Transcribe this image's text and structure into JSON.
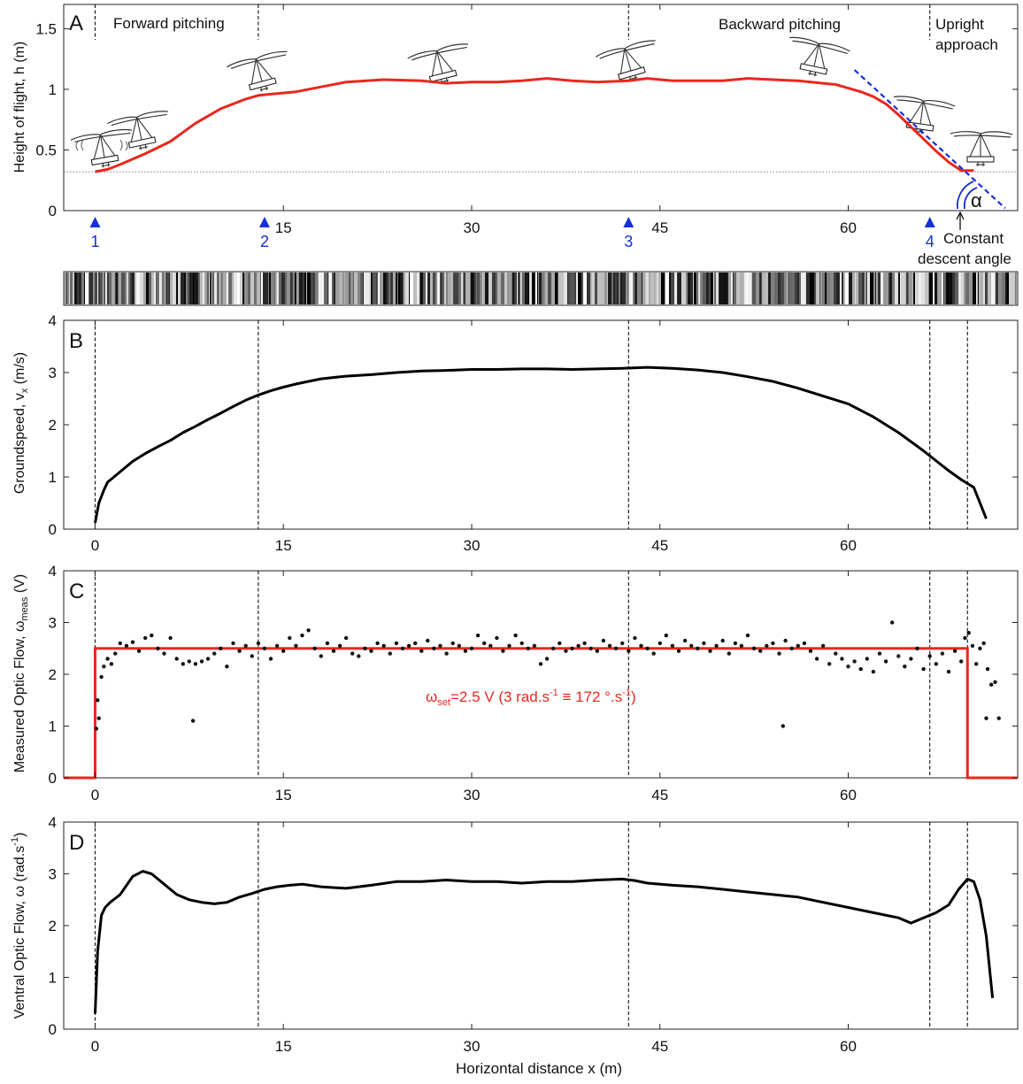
{
  "figure": {
    "panel_A": {
      "panel_label": "A",
      "ylabel": "Height of flight, h (m)",
      "yticks": [
        "0",
        "0.5",
        "1",
        "1.5"
      ],
      "xticks": [
        "15",
        "30",
        "45",
        "60"
      ],
      "phase_labels": [
        "Forward pitching",
        "Backward pitching",
        "Upright",
        "approach"
      ],
      "markers": [
        "1",
        "2",
        "3",
        "4"
      ],
      "alpha_label": "α",
      "annotation": [
        "Constant",
        "descent angle"
      ]
    },
    "panel_B": {
      "panel_label": "B",
      "ylabel_main": "Groundspeed, v",
      "ylabel_sub": "x",
      "ylabel_tail": " (m/s)",
      "yticks": [
        "0",
        "1",
        "2",
        "3",
        "4"
      ],
      "xticks": [
        "0",
        "15",
        "30",
        "45",
        "60"
      ]
    },
    "panel_C": {
      "panel_label": "C",
      "ylabel_main": "Measured Optic Flow, ω",
      "ylabel_sub": "meas",
      "ylabel_tail": " (V)",
      "yticks": [
        "0",
        "1",
        "2",
        "3",
        "4"
      ],
      "xticks": [
        "0",
        "15",
        "30",
        "45",
        "60"
      ],
      "setpoint_omega": "ω",
      "setpoint_sub": "set",
      "setpoint_t1": "=2.5 V  (3 rad.s",
      "setpoint_sup1": "-1",
      "setpoint_t2": " ≡ 172 °.s",
      "setpoint_sup2": "-1",
      "setpoint_t3": ")"
    },
    "panel_D": {
      "panel_label": "D",
      "ylabel_main": "Ventral Optic Flow, ω (rad.s",
      "ylabel_sup": "-1",
      "ylabel_tail": ")",
      "yticks": [
        "0",
        "1",
        "2",
        "3",
        "4"
      ],
      "xticks": [
        "0",
        "15",
        "30",
        "45",
        "60"
      ],
      "xlabel": "Horizontal distance x (m)"
    }
  },
  "chart_data": [
    {
      "panel": "A",
      "type": "line",
      "xlim": [
        -2.5,
        73.5
      ],
      "ylim": [
        0,
        1.7
      ],
      "phase_boundaries_x": [
        0,
        13,
        42.5,
        66.5
      ],
      "marker_positions_x": [
        0,
        13.5,
        42.5,
        66.5
      ],
      "ground_reference_y": 0.32,
      "series": [
        {
          "color": "#e8281e",
          "x": [
            0.0,
            1.0,
            2.0,
            4.0,
            6.0,
            8.0,
            10.0,
            12.0,
            13.0,
            14.0,
            16.0,
            18.0,
            20.0,
            23.0,
            26.0,
            28.0,
            30.0,
            32.0,
            34.0,
            36.0,
            38.0,
            40.0,
            42.5,
            44.0,
            46.0,
            48.0,
            50.0,
            52.0,
            54.0,
            56.0,
            58.0,
            59.0,
            60.0,
            61.0,
            62.0,
            63.0,
            64.0,
            65.0,
            66.0,
            67.0,
            68.0,
            69.0,
            70.0
          ],
          "y": [
            0.32,
            0.34,
            0.38,
            0.47,
            0.57,
            0.72,
            0.84,
            0.92,
            0.95,
            0.96,
            0.98,
            1.02,
            1.06,
            1.08,
            1.07,
            1.05,
            1.06,
            1.06,
            1.07,
            1.09,
            1.07,
            1.06,
            1.07,
            1.09,
            1.07,
            1.07,
            1.07,
            1.09,
            1.08,
            1.07,
            1.05,
            1.04,
            1.01,
            0.98,
            0.94,
            0.88,
            0.79,
            0.69,
            0.59,
            0.49,
            0.4,
            0.33,
            0.33
          ]
        }
      ],
      "descent_line": {
        "color": "#1530d8",
        "x": [
          60.5,
          72.5
        ],
        "y": [
          1.16,
          0.02
        ]
      },
      "annotation": "Constant descent angle"
    },
    {
      "panel": "B",
      "type": "line",
      "xlim": [
        -2.5,
        73.5
      ],
      "ylim": [
        0,
        4
      ],
      "ylabel": "Groundspeed, vx (m/s)",
      "phase_boundaries_x": [
        0,
        13,
        42.5,
        66.5,
        69.5
      ],
      "series": [
        {
          "color": "#000000",
          "x": [
            0.0,
            0.3,
            0.7,
            1.0,
            1.5,
            2.0,
            3.0,
            4.0,
            5.0,
            6.0,
            7.0,
            8.0,
            9.0,
            10.0,
            11.0,
            12.0,
            13.0,
            14.0,
            15.0,
            16.0,
            17.0,
            18.0,
            20.0,
            22.0,
            24.0,
            26.0,
            28.0,
            30.0,
            32.0,
            34.0,
            36.0,
            38.0,
            40.0,
            42.0,
            44.0,
            46.0,
            48.0,
            50.0,
            52.0,
            54.0,
            56.0,
            58.0,
            60.0,
            62.0,
            64.0,
            66.0,
            68.0,
            69.0,
            70.0,
            71.0
          ],
          "y": [
            0.12,
            0.5,
            0.75,
            0.9,
            1.0,
            1.1,
            1.3,
            1.45,
            1.58,
            1.7,
            1.85,
            1.97,
            2.1,
            2.22,
            2.35,
            2.47,
            2.57,
            2.65,
            2.72,
            2.78,
            2.83,
            2.88,
            2.93,
            2.96,
            3.0,
            3.03,
            3.04,
            3.06,
            3.06,
            3.07,
            3.07,
            3.06,
            3.07,
            3.08,
            3.1,
            3.08,
            3.05,
            3.0,
            2.92,
            2.83,
            2.7,
            2.55,
            2.4,
            2.15,
            1.85,
            1.5,
            1.12,
            0.95,
            0.8,
            0.2
          ]
        }
      ]
    },
    {
      "panel": "C",
      "type": "scatter",
      "xlim": [
        -2.5,
        73.5
      ],
      "ylim": [
        0,
        4
      ],
      "ylabel": "Measured Optic Flow, ωmeas (V)",
      "phase_boundaries_x": [
        0,
        13,
        42.5,
        66.5,
        69.5
      ],
      "setpoint": {
        "value": 2.5,
        "x_on": 0,
        "x_off": 69.5,
        "color": "#e8281e",
        "label": "ωset=2.5 V  (3 rad.s-1 ≡ 172 °.s-1)"
      },
      "points": {
        "x": [
          0.1,
          0.2,
          0.3,
          0.5,
          0.7,
          1.0,
          1.3,
          1.6,
          2.0,
          2.5,
          3.0,
          3.5,
          4.0,
          4.5,
          5.0,
          5.5,
          6.0,
          6.5,
          7.0,
          7.5,
          8.0,
          8.5,
          9.0,
          9.5,
          10.0,
          10.5,
          11.0,
          11.5,
          12.0,
          12.5,
          13.0,
          13.5,
          14.0,
          14.5,
          15.0,
          15.5,
          16.0,
          16.5,
          17.0,
          17.5,
          18.0,
          18.5,
          19.0,
          19.5,
          20.0,
          20.5,
          21.0,
          21.5,
          22.0,
          22.5,
          23.0,
          23.5,
          24.0,
          24.5,
          25.0,
          25.5,
          26.0,
          26.5,
          27.0,
          27.5,
          28.0,
          28.5,
          29.0,
          29.5,
          30.0,
          30.5,
          31.0,
          31.5,
          32.0,
          32.5,
          33.0,
          33.5,
          34.0,
          34.5,
          35.0,
          35.5,
          36.0,
          36.5,
          37.0,
          37.5,
          38.0,
          38.5,
          39.0,
          39.5,
          40.0,
          40.5,
          41.0,
          41.5,
          42.0,
          42.5,
          43.0,
          43.5,
          44.0,
          44.5,
          45.0,
          45.5,
          46.0,
          46.5,
          47.0,
          47.5,
          48.0,
          48.5,
          49.0,
          49.5,
          50.0,
          50.5,
          51.0,
          51.5,
          52.0,
          52.5,
          53.0,
          53.5,
          54.0,
          54.5,
          55.0,
          55.5,
          56.0,
          56.5,
          57.0,
          57.5,
          58.0,
          58.5,
          59.0,
          59.5,
          60.0,
          60.5,
          61.0,
          61.5,
          62.0,
          62.5,
          63.0,
          63.5,
          64.0,
          64.5,
          65.0,
          65.5,
          66.0,
          66.5,
          67.0,
          67.5,
          68.0,
          68.5,
          69.0,
          69.3,
          69.6,
          69.9,
          70.2,
          70.5,
          70.8,
          71.1,
          71.4,
          71.7,
          72.0,
          7.8,
          54.8,
          71.0
        ],
        "y": [
          0.95,
          1.5,
          1.15,
          1.95,
          2.15,
          2.3,
          2.2,
          2.4,
          2.6,
          2.55,
          2.62,
          2.45,
          2.7,
          2.75,
          2.5,
          2.4,
          2.7,
          2.3,
          2.2,
          2.25,
          2.2,
          2.25,
          2.3,
          2.4,
          2.5,
          2.15,
          2.6,
          2.45,
          2.55,
          2.35,
          2.6,
          2.5,
          2.3,
          2.55,
          2.45,
          2.7,
          2.55,
          2.75,
          2.85,
          2.5,
          2.35,
          2.6,
          2.45,
          2.55,
          2.7,
          2.4,
          2.35,
          2.5,
          2.45,
          2.6,
          2.55,
          2.4,
          2.6,
          2.5,
          2.55,
          2.6,
          2.45,
          2.65,
          2.5,
          2.55,
          2.4,
          2.6,
          2.55,
          2.45,
          2.5,
          2.75,
          2.6,
          2.55,
          2.7,
          2.45,
          2.55,
          2.75,
          2.6,
          2.5,
          2.55,
          2.2,
          2.3,
          2.5,
          2.6,
          2.45,
          2.5,
          2.55,
          2.6,
          2.5,
          2.45,
          2.65,
          2.55,
          2.5,
          2.6,
          2.45,
          2.7,
          2.55,
          2.5,
          2.4,
          2.6,
          2.75,
          2.55,
          2.45,
          2.65,
          2.55,
          2.5,
          2.6,
          2.45,
          2.55,
          2.65,
          2.4,
          2.6,
          2.55,
          2.75,
          2.5,
          2.45,
          2.55,
          2.6,
          2.4,
          2.65,
          2.5,
          2.55,
          2.6,
          2.45,
          2.3,
          2.55,
          2.2,
          2.4,
          2.3,
          2.15,
          2.25,
          2.1,
          2.3,
          2.05,
          2.4,
          2.25,
          3.0,
          2.35,
          2.15,
          2.3,
          2.5,
          2.1,
          2.35,
          2.2,
          2.4,
          2.05,
          2.45,
          2.25,
          2.7,
          2.8,
          2.55,
          2.2,
          2.5,
          2.6,
          2.1,
          1.8,
          1.85,
          1.15,
          1.1,
          1.0,
          1.15
        ]
      }
    },
    {
      "panel": "D",
      "type": "line",
      "xlim": [
        -2.5,
        73.5
      ],
      "ylim": [
        0,
        4
      ],
      "ylabel": "Ventral Optic Flow, ω (rad.s-1)",
      "xlabel": "Horizontal distance x (m)",
      "phase_boundaries_x": [
        0,
        13,
        42.5,
        66.5,
        69.5
      ],
      "series": [
        {
          "color": "#000000",
          "x": [
            0.0,
            0.2,
            0.5,
            0.8,
            1.2,
            2.0,
            3.0,
            3.8,
            4.5,
            5.5,
            6.5,
            7.5,
            8.5,
            9.5,
            10.5,
            11.5,
            12.5,
            13.5,
            14.5,
            15.5,
            16.5,
            18.0,
            20.0,
            22.0,
            24.0,
            26.0,
            28.0,
            30.0,
            32.0,
            34.0,
            36.0,
            38.0,
            40.0,
            42.0,
            43.0,
            44.0,
            46.0,
            48.0,
            50.0,
            52.0,
            54.0,
            56.0,
            58.0,
            60.0,
            62.0,
            64.0,
            65.0,
            66.0,
            67.0,
            68.0,
            68.8,
            69.5,
            70.0,
            70.5,
            71.0,
            71.5
          ],
          "y": [
            0.3,
            1.5,
            2.2,
            2.35,
            2.45,
            2.6,
            2.95,
            3.05,
            3.0,
            2.8,
            2.6,
            2.5,
            2.45,
            2.42,
            2.45,
            2.55,
            2.62,
            2.7,
            2.75,
            2.78,
            2.8,
            2.75,
            2.72,
            2.78,
            2.85,
            2.85,
            2.88,
            2.85,
            2.85,
            2.82,
            2.85,
            2.85,
            2.88,
            2.9,
            2.87,
            2.82,
            2.78,
            2.75,
            2.7,
            2.65,
            2.6,
            2.55,
            2.45,
            2.35,
            2.25,
            2.15,
            2.05,
            2.15,
            2.25,
            2.4,
            2.7,
            2.9,
            2.85,
            2.5,
            1.8,
            0.6
          ]
        }
      ]
    }
  ]
}
